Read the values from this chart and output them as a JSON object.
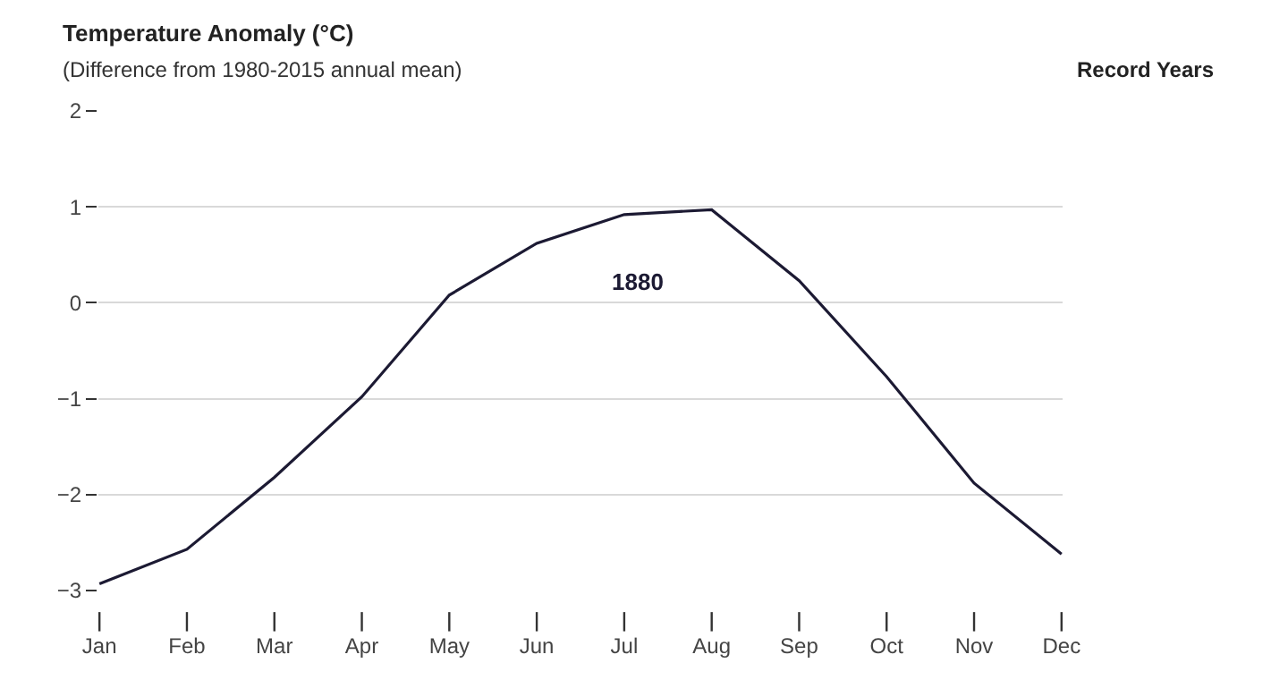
{
  "chart_data": {
    "type": "line",
    "title": "Temperature Anomaly (°C)",
    "subtitle": "(Difference from 1980-2015 annual mean)",
    "legend_title": "Record Years",
    "categories": [
      "Jan",
      "Feb",
      "Mar",
      "Apr",
      "May",
      "Jun",
      "Jul",
      "Aug",
      "Sep",
      "Oct",
      "Nov",
      "Dec"
    ],
    "series": [
      {
        "name": "1880",
        "color": "#1c1a33",
        "values": [
          -2.93,
          -2.57,
          -1.82,
          -0.98,
          0.08,
          0.62,
          0.92,
          0.97,
          0.23,
          -0.77,
          -1.88,
          -2.62
        ]
      }
    ],
    "ylim": [
      -3,
      2
    ],
    "yticks": [
      2,
      1,
      0,
      {
        "value": -1,
        "label": "−1"
      },
      {
        "value": -2,
        "label": "−2"
      },
      {
        "value": -3,
        "label": "−3"
      }
    ],
    "grid": "y",
    "legend": false,
    "marker": "none",
    "line_style": "solid"
  }
}
